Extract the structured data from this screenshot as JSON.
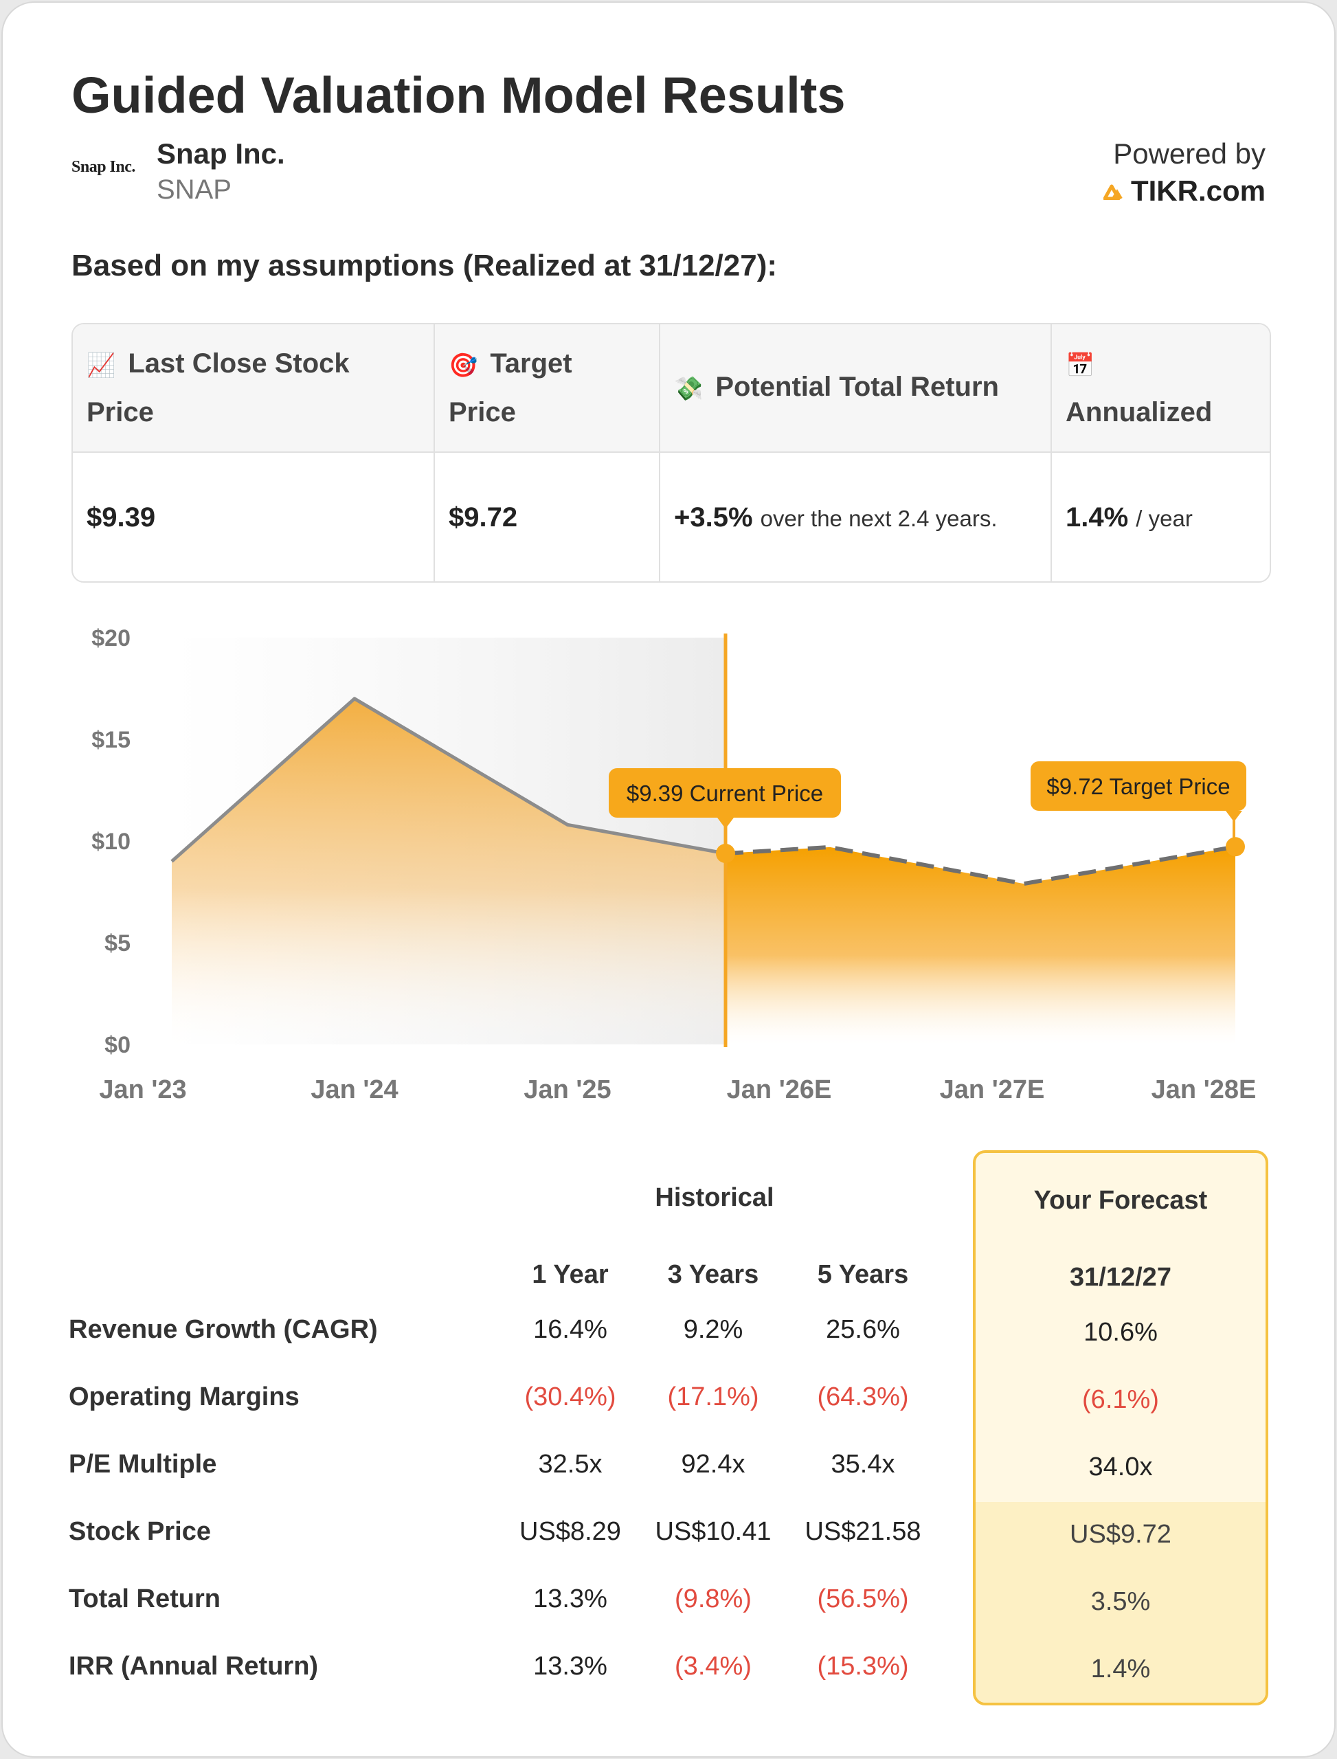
{
  "title": "Guided Valuation Model Results",
  "company": {
    "logo_text": "Snap Inc.",
    "name": "Snap Inc.",
    "ticker": "SNAP"
  },
  "powered": {
    "label": "Powered by",
    "brand": "TIKR.com",
    "brand_color": "#f5a623"
  },
  "subtitle": "Based on my assumptions (Realized at 31/12/27):",
  "summary": {
    "headers": [
      {
        "icon": "chart-increasing-icon",
        "glyph": "📈",
        "label": "Last Close Stock Price"
      },
      {
        "icon": "target-icon",
        "glyph": "🎯",
        "label": "Target Price"
      },
      {
        "icon": "money-icon",
        "glyph": "💸",
        "label": "Potential Total Return"
      },
      {
        "icon": "calendar-icon",
        "glyph": "📅",
        "label": "Annualized"
      }
    ],
    "last_close": "$9.39",
    "target": "$9.72",
    "total_return": "+3.5%",
    "total_return_note": "over the next 2.4 years.",
    "annualized": "1.4%",
    "annualized_note": "/ year"
  },
  "chart_data": {
    "type": "area",
    "y_ticks": [
      "$20",
      "$15",
      "$10",
      "$5",
      "$0"
    ],
    "ylim": [
      0,
      20
    ],
    "x_ticks": [
      "Jan '23",
      "Jan '24",
      "Jan '25",
      "Jan '26E",
      "Jan '27E",
      "Jan '28E"
    ],
    "historical": {
      "x": [
        "Jan '23",
        "Jan '24",
        "Jan '25",
        "Current"
      ],
      "values": [
        9.0,
        17.0,
        10.8,
        9.39
      ]
    },
    "forecast": {
      "x": [
        "Current",
        "Jan '26E",
        "Jan '27E",
        "Jan '28E"
      ],
      "values": [
        9.39,
        9.7,
        7.9,
        9.72
      ]
    },
    "annotations": [
      {
        "label": "$9.39 Current Price",
        "value": 9.39
      },
      {
        "label": "$9.72 Target Price",
        "value": 9.72
      }
    ],
    "accent_color": "#f5a623"
  },
  "table": {
    "historical_label": "Historical",
    "forecast_label": "Your Forecast",
    "periods": [
      "1 Year",
      "3 Years",
      "5 Years"
    ],
    "forecast_date": "31/12/27",
    "rows": [
      {
        "label": "Revenue Growth (CAGR)",
        "values": [
          "16.4%",
          "9.2%",
          "25.6%"
        ],
        "forecast": "10.6%",
        "neg": [
          false,
          false,
          false
        ],
        "forecast_neg": false
      },
      {
        "label": "Operating Margins",
        "values": [
          "(30.4%)",
          "(17.1%)",
          "(64.3%)"
        ],
        "forecast": "(6.1%)",
        "neg": [
          true,
          true,
          true
        ],
        "forecast_neg": true
      },
      {
        "label": "P/E Multiple",
        "values": [
          "32.5x",
          "92.4x",
          "35.4x"
        ],
        "forecast": "34.0x",
        "neg": [
          false,
          false,
          false
        ],
        "forecast_neg": false
      },
      {
        "label": "Stock Price",
        "values": [
          "US$8.29",
          "US$10.41",
          "US$21.58"
        ],
        "forecast": "US$9.72",
        "neg": [
          false,
          false,
          false
        ],
        "forecast_neg": false
      },
      {
        "label": "Total Return",
        "values": [
          "13.3%",
          "(9.8%)",
          "(56.5%)"
        ],
        "forecast": "3.5%",
        "neg": [
          false,
          true,
          true
        ],
        "forecast_neg": false
      },
      {
        "label": "IRR (Annual Return)",
        "values": [
          "13.3%",
          "(3.4%)",
          "(15.3%)"
        ],
        "forecast": "1.4%",
        "neg": [
          false,
          true,
          true
        ],
        "forecast_neg": false
      }
    ]
  }
}
